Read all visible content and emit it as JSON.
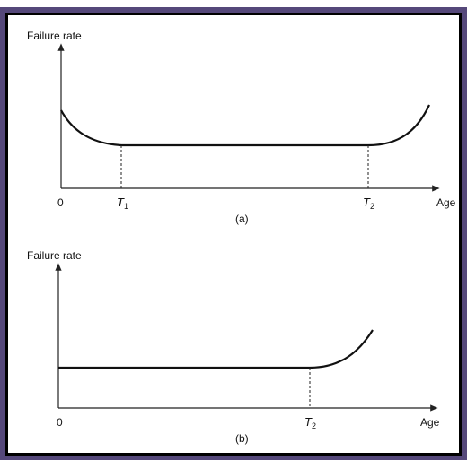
{
  "panels": [
    {
      "y_axis_label": "Failure rate",
      "origin_label": "0",
      "markers": [
        {
          "symbol": "T",
          "subscript": "1"
        },
        {
          "symbol": "T",
          "subscript": "2"
        }
      ],
      "x_axis_label": "Age",
      "caption": "(a)"
    },
    {
      "y_axis_label": "Failure rate",
      "origin_label": "0",
      "markers": [
        {
          "symbol": "T",
          "subscript": "2"
        }
      ],
      "x_axis_label": "Age",
      "caption": "(b)"
    }
  ]
}
